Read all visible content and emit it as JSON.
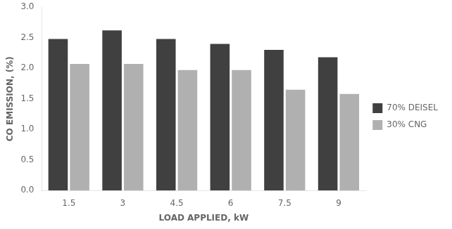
{
  "chart_data": {
    "type": "bar",
    "xlabel": "LOAD APPLIED, kW",
    "ylabel": "CO EMISSION, (%)",
    "categories": [
      "1.5",
      "3",
      "4.5",
      "6",
      "7.5",
      "9"
    ],
    "series": [
      {
        "name": "70% DEISEL",
        "color": "#404040",
        "values": [
          2.48,
          2.62,
          2.48,
          2.4,
          2.3,
          2.18
        ]
      },
      {
        "name": "30% CNG",
        "color": "#b0b0b0",
        "values": [
          2.07,
          2.07,
          1.97,
          1.97,
          1.65,
          1.58
        ]
      }
    ],
    "ylim": [
      0,
      3
    ],
    "yticks": [
      {
        "value": 0,
        "label": "0.0"
      },
      {
        "value": 0.5,
        "label": "0.5"
      },
      {
        "value": 1,
        "label": "1.0"
      },
      {
        "value": 1.5,
        "label": "1.5"
      },
      {
        "value": 2,
        "label": "2.0"
      },
      {
        "value": 2.5,
        "label": "2.5"
      },
      {
        "value": 3,
        "label": "3.0"
      }
    ],
    "grid": false,
    "legend": "right"
  }
}
